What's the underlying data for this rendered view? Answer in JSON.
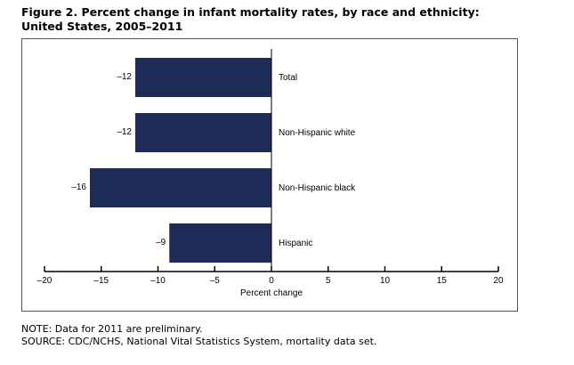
{
  "title": "Figure 2. Percent change in infant mortality rates, by race and ethnicity: United States, 2005–2011",
  "notes": {
    "note": "NOTE: Data for 2011 are preliminary.",
    "source": "SOURCE: CDC/NCHS, National Vital Statistics System, mortality data set."
  },
  "colors": {
    "bar": "#1f2b57"
  },
  "chart_data": {
    "type": "bar",
    "orientation": "horizontal",
    "categories": [
      "Total",
      "Non-Hispanic white",
      "Non-Hispanic black",
      "Hispanic"
    ],
    "values": [
      -12,
      -12,
      -16,
      -9
    ],
    "value_labels": [
      "–12",
      "–12",
      "–16",
      "–9"
    ],
    "xlabel": "Percent change",
    "xlim": [
      -20,
      20
    ],
    "xticks": [
      -20,
      -15,
      -10,
      -5,
      0,
      5,
      10,
      15,
      20
    ],
    "xtick_labels": [
      "–20",
      "–15",
      "–10",
      "–5",
      "0",
      "5",
      "10",
      "15",
      "20"
    ],
    "grid": false
  }
}
